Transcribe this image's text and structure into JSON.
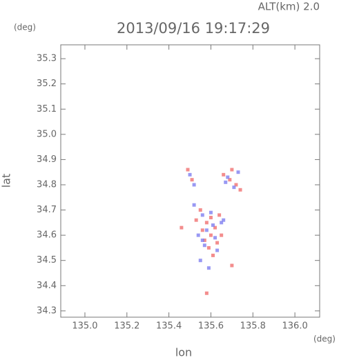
{
  "chart_data": {
    "type": "scatter",
    "title": "2013/09/16 19:17:29",
    "subtitle": "ALT(km) 2.0",
    "x_label": "lon",
    "y_label": "lat",
    "x_unit": "(deg)",
    "y_unit": "(deg)",
    "xlim": [
      134.885,
      136.118
    ],
    "ylim": [
      34.275,
      35.355
    ],
    "xticks": [
      {
        "value": 135.0,
        "label": "135.0"
      },
      135.2,
      135.4,
      135.6,
      135.8,
      {
        "value": 136.0,
        "label": "136.0"
      }
    ],
    "yticks": [
      34.3,
      34.4,
      34.5,
      34.6,
      34.7,
      34.8,
      34.9,
      {
        "value": 35.0,
        "label": "35.0"
      },
      35.1,
      35.2,
      35.3
    ],
    "series": [
      {
        "color": "#f07070",
        "x": [
          135.55,
          135.58,
          135.62,
          135.6,
          135.57,
          135.64,
          135.53,
          135.59,
          135.63,
          135.56,
          135.61,
          135.7,
          135.69,
          135.72,
          135.66,
          135.74,
          135.49,
          135.51,
          135.58,
          135.7,
          135.46,
          135.6,
          135.65
        ],
        "values": [
          34.7,
          34.65,
          34.63,
          34.6,
          34.58,
          34.68,
          34.66,
          34.55,
          34.57,
          34.62,
          34.52,
          34.86,
          34.82,
          34.8,
          34.84,
          34.78,
          34.86,
          34.82,
          34.37,
          34.48,
          34.63,
          34.67,
          34.6
        ]
      },
      {
        "color": "#8080f0",
        "x": [
          135.52,
          135.56,
          135.6,
          135.65,
          135.58,
          135.54,
          135.62,
          135.57,
          135.63,
          135.55,
          135.59,
          135.66,
          135.68,
          135.73,
          135.71,
          135.67,
          135.5,
          135.52,
          135.56,
          135.61
        ],
        "values": [
          34.72,
          34.68,
          34.69,
          34.65,
          34.62,
          34.6,
          34.59,
          34.56,
          34.54,
          34.5,
          34.47,
          34.66,
          34.83,
          34.85,
          34.79,
          34.81,
          34.84,
          34.8,
          34.58,
          34.64
        ]
      }
    ]
  }
}
